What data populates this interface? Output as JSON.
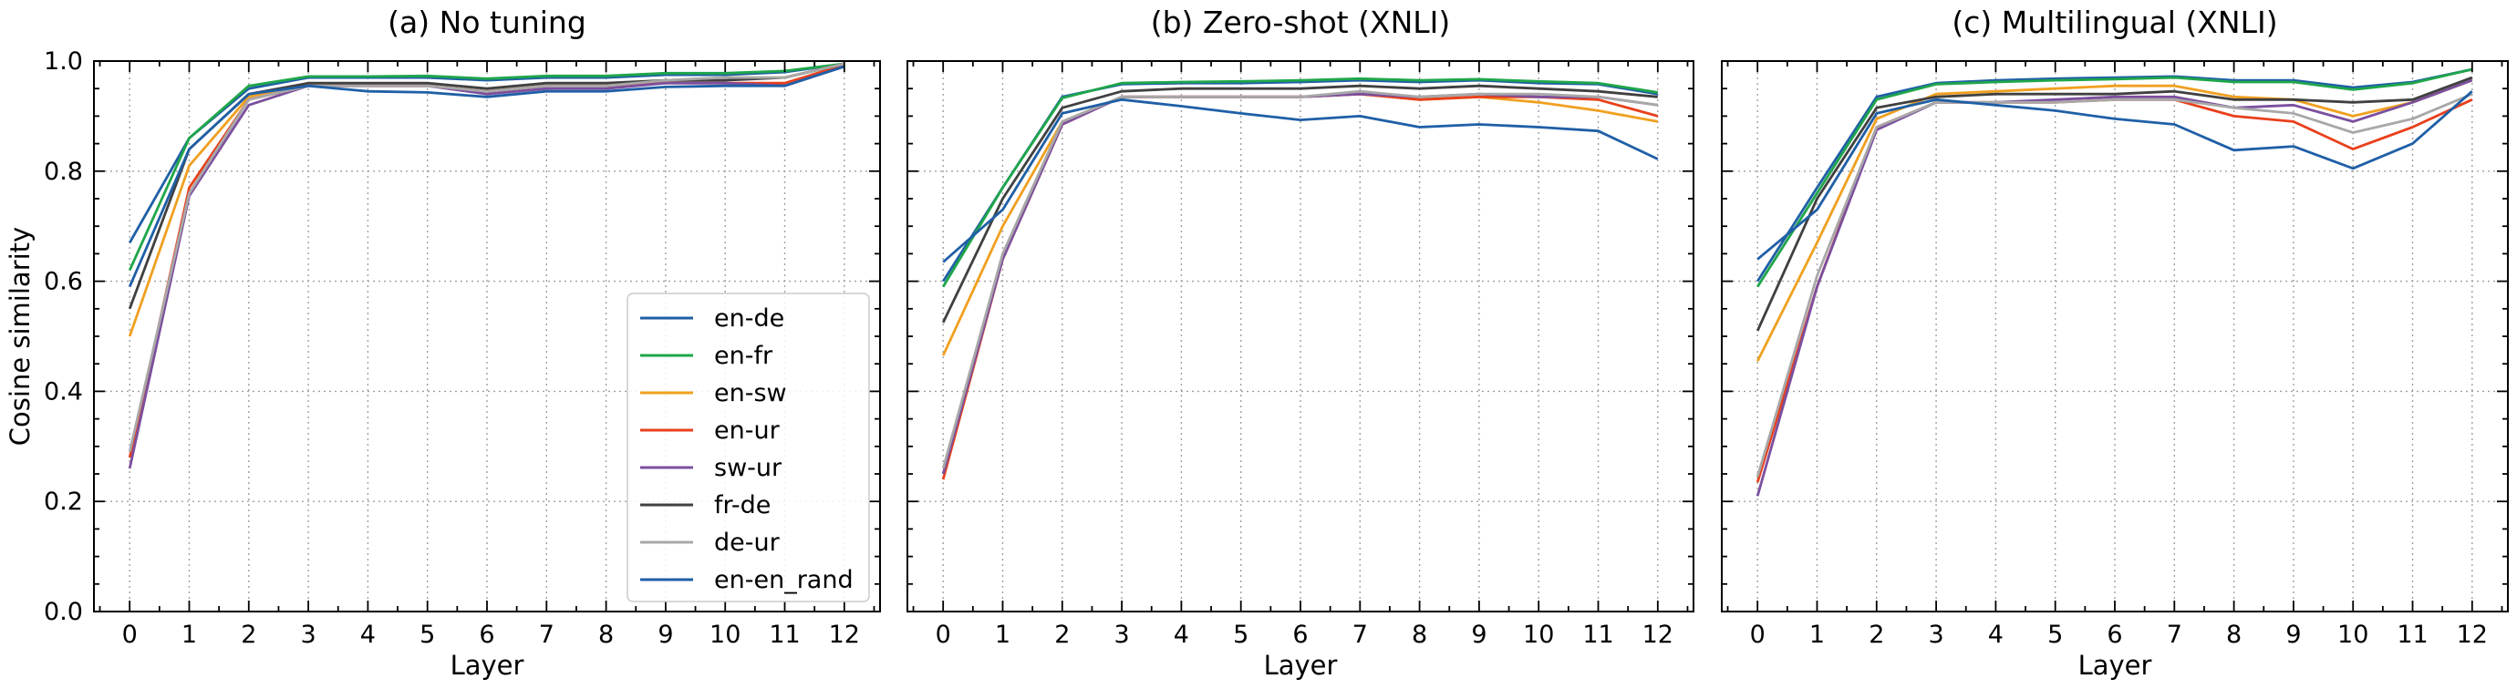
{
  "chart_data": [
    {
      "type": "line",
      "title": "(a) No tuning",
      "xlabel": "Layer",
      "ylabel": "Cosine similarity",
      "x": [
        0,
        1,
        2,
        3,
        4,
        5,
        6,
        7,
        8,
        9,
        10,
        11,
        12
      ],
      "xlim": [
        -0.6,
        12.6
      ],
      "ylim": [
        0.0,
        1.0
      ],
      "yticks": [
        "0.0",
        "0.2",
        "0.4",
        "0.6",
        "0.8",
        "1.0"
      ],
      "grid": true,
      "legend": "lower right",
      "series": [
        {
          "name": "en-de",
          "values": [
            0.67,
            0.86,
            0.95,
            0.97,
            0.97,
            0.97,
            0.965,
            0.97,
            0.97,
            0.975,
            0.975,
            0.98,
            0.995
          ]
        },
        {
          "name": "en-fr",
          "values": [
            0.62,
            0.86,
            0.955,
            0.972,
            0.972,
            0.973,
            0.968,
            0.973,
            0.973,
            0.978,
            0.978,
            0.982,
            0.995
          ]
        },
        {
          "name": "en-sw",
          "values": [
            0.5,
            0.81,
            0.935,
            0.96,
            0.955,
            0.955,
            0.945,
            0.955,
            0.955,
            0.965,
            0.97,
            0.97,
            0.995
          ]
        },
        {
          "name": "en-ur",
          "values": [
            0.28,
            0.77,
            0.93,
            0.955,
            0.955,
            0.955,
            0.945,
            0.955,
            0.955,
            0.96,
            0.96,
            0.96,
            0.993
          ]
        },
        {
          "name": "sw-ur",
          "values": [
            0.26,
            0.755,
            0.92,
            0.955,
            0.955,
            0.955,
            0.94,
            0.95,
            0.95,
            0.96,
            0.96,
            0.955,
            0.99
          ]
        },
        {
          "name": "fr-de",
          "values": [
            0.55,
            0.84,
            0.94,
            0.96,
            0.96,
            0.96,
            0.95,
            0.96,
            0.96,
            0.965,
            0.965,
            0.97,
            0.995
          ]
        },
        {
          "name": "de-ur",
          "values": [
            0.29,
            0.76,
            0.93,
            0.955,
            0.955,
            0.955,
            0.945,
            0.955,
            0.955,
            0.965,
            0.97,
            0.97,
            0.995
          ]
        },
        {
          "name": "en-en_rand",
          "values": [
            0.59,
            0.84,
            0.94,
            0.955,
            0.945,
            0.943,
            0.935,
            0.945,
            0.945,
            0.953,
            0.955,
            0.955,
            0.99
          ]
        }
      ]
    },
    {
      "type": "line",
      "title": "(b) Zero-shot (XNLI)",
      "xlabel": "Layer",
      "ylabel": "",
      "x": [
        0,
        1,
        2,
        3,
        4,
        5,
        6,
        7,
        8,
        9,
        10,
        11,
        12
      ],
      "xlim": [
        -0.6,
        12.6
      ],
      "ylim": [
        0.0,
        1.0
      ],
      "grid": true,
      "series": [
        {
          "name": "en-de",
          "values": [
            0.6,
            0.77,
            0.935,
            0.958,
            0.96,
            0.96,
            0.962,
            0.965,
            0.962,
            0.965,
            0.96,
            0.958,
            0.94
          ]
        },
        {
          "name": "en-fr",
          "values": [
            0.59,
            0.77,
            0.933,
            0.96,
            0.962,
            0.963,
            0.965,
            0.968,
            0.965,
            0.967,
            0.963,
            0.96,
            0.943
          ]
        },
        {
          "name": "en-sw",
          "values": [
            0.465,
            0.7,
            0.89,
            0.935,
            0.935,
            0.935,
            0.935,
            0.94,
            0.93,
            0.935,
            0.925,
            0.91,
            0.89
          ]
        },
        {
          "name": "en-ur",
          "values": [
            0.24,
            0.64,
            0.885,
            0.935,
            0.935,
            0.935,
            0.935,
            0.94,
            0.93,
            0.935,
            0.935,
            0.93,
            0.9
          ]
        },
        {
          "name": "sw-ur",
          "values": [
            0.25,
            0.64,
            0.885,
            0.935,
            0.935,
            0.935,
            0.935,
            0.94,
            0.935,
            0.94,
            0.935,
            0.935,
            0.92
          ]
        },
        {
          "name": "fr-de",
          "values": [
            0.525,
            0.75,
            0.915,
            0.945,
            0.95,
            0.95,
            0.95,
            0.955,
            0.95,
            0.955,
            0.95,
            0.945,
            0.935
          ]
        },
        {
          "name": "de-ur",
          "values": [
            0.26,
            0.65,
            0.89,
            0.935,
            0.935,
            0.935,
            0.935,
            0.945,
            0.935,
            0.94,
            0.94,
            0.935,
            0.92
          ]
        },
        {
          "name": "en-en_rand",
          "values": [
            0.635,
            0.73,
            0.905,
            0.93,
            0.918,
            0.905,
            0.893,
            0.9,
            0.88,
            0.885,
            0.88,
            0.873,
            0.822
          ]
        }
      ]
    },
    {
      "type": "line",
      "title": "(c) Multilingual (XNLI)",
      "xlabel": "Layer",
      "ylabel": "",
      "x": [
        0,
        1,
        2,
        3,
        4,
        5,
        6,
        7,
        8,
        9,
        10,
        11,
        12
      ],
      "xlim": [
        -0.6,
        12.6
      ],
      "ylim": [
        0.0,
        1.0
      ],
      "grid": true,
      "series": [
        {
          "name": "en-de",
          "values": [
            0.6,
            0.77,
            0.935,
            0.96,
            0.965,
            0.968,
            0.97,
            0.972,
            0.965,
            0.965,
            0.952,
            0.962,
            0.985
          ]
        },
        {
          "name": "en-fr",
          "values": [
            0.59,
            0.76,
            0.93,
            0.958,
            0.962,
            0.965,
            0.967,
            0.97,
            0.962,
            0.962,
            0.948,
            0.96,
            0.985
          ]
        },
        {
          "name": "en-sw",
          "values": [
            0.455,
            0.67,
            0.895,
            0.94,
            0.945,
            0.95,
            0.955,
            0.955,
            0.935,
            0.93,
            0.9,
            0.925,
            0.965
          ]
        },
        {
          "name": "en-ur",
          "values": [
            0.235,
            0.59,
            0.88,
            0.925,
            0.925,
            0.925,
            0.93,
            0.93,
            0.9,
            0.89,
            0.84,
            0.88,
            0.93
          ]
        },
        {
          "name": "sw-ur",
          "values": [
            0.21,
            0.59,
            0.875,
            0.925,
            0.925,
            0.93,
            0.935,
            0.935,
            0.915,
            0.92,
            0.89,
            0.925,
            0.965
          ]
        },
        {
          "name": "fr-de",
          "values": [
            0.51,
            0.75,
            0.915,
            0.935,
            0.94,
            0.94,
            0.94,
            0.945,
            0.93,
            0.93,
            0.925,
            0.93,
            0.97
          ]
        },
        {
          "name": "de-ur",
          "values": [
            0.245,
            0.61,
            0.88,
            0.925,
            0.925,
            0.925,
            0.93,
            0.93,
            0.915,
            0.905,
            0.87,
            0.895,
            0.94
          ]
        },
        {
          "name": "en-en_rand",
          "values": [
            0.64,
            0.73,
            0.905,
            0.93,
            0.92,
            0.91,
            0.895,
            0.885,
            0.838,
            0.845,
            0.805,
            0.85,
            0.945
          ]
        }
      ]
    }
  ],
  "colors": {
    "en-de": "#1f5fa6",
    "en-fr": "#1fa64a",
    "en-sw": "#f0a020",
    "en-ur": "#e8401c",
    "sw-ur": "#7b4f9e",
    "fr-de": "#404040",
    "de-ur": "#a8a8a8",
    "en-en_rand": "#1f5fa6"
  }
}
